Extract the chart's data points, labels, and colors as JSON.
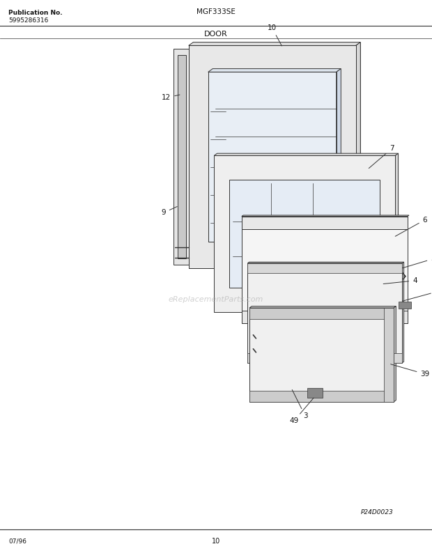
{
  "title_model": "MGF333SE",
  "title_section": "DOOR",
  "pub_no_label": "Publication No.",
  "pub_no_value": "5995286316",
  "diagram_id": "P24D0023",
  "footer_date": "07/96",
  "footer_page": "10",
  "watermark": "eReplacementParts.com",
  "bg_color": "#ffffff",
  "line_color": "#333333"
}
